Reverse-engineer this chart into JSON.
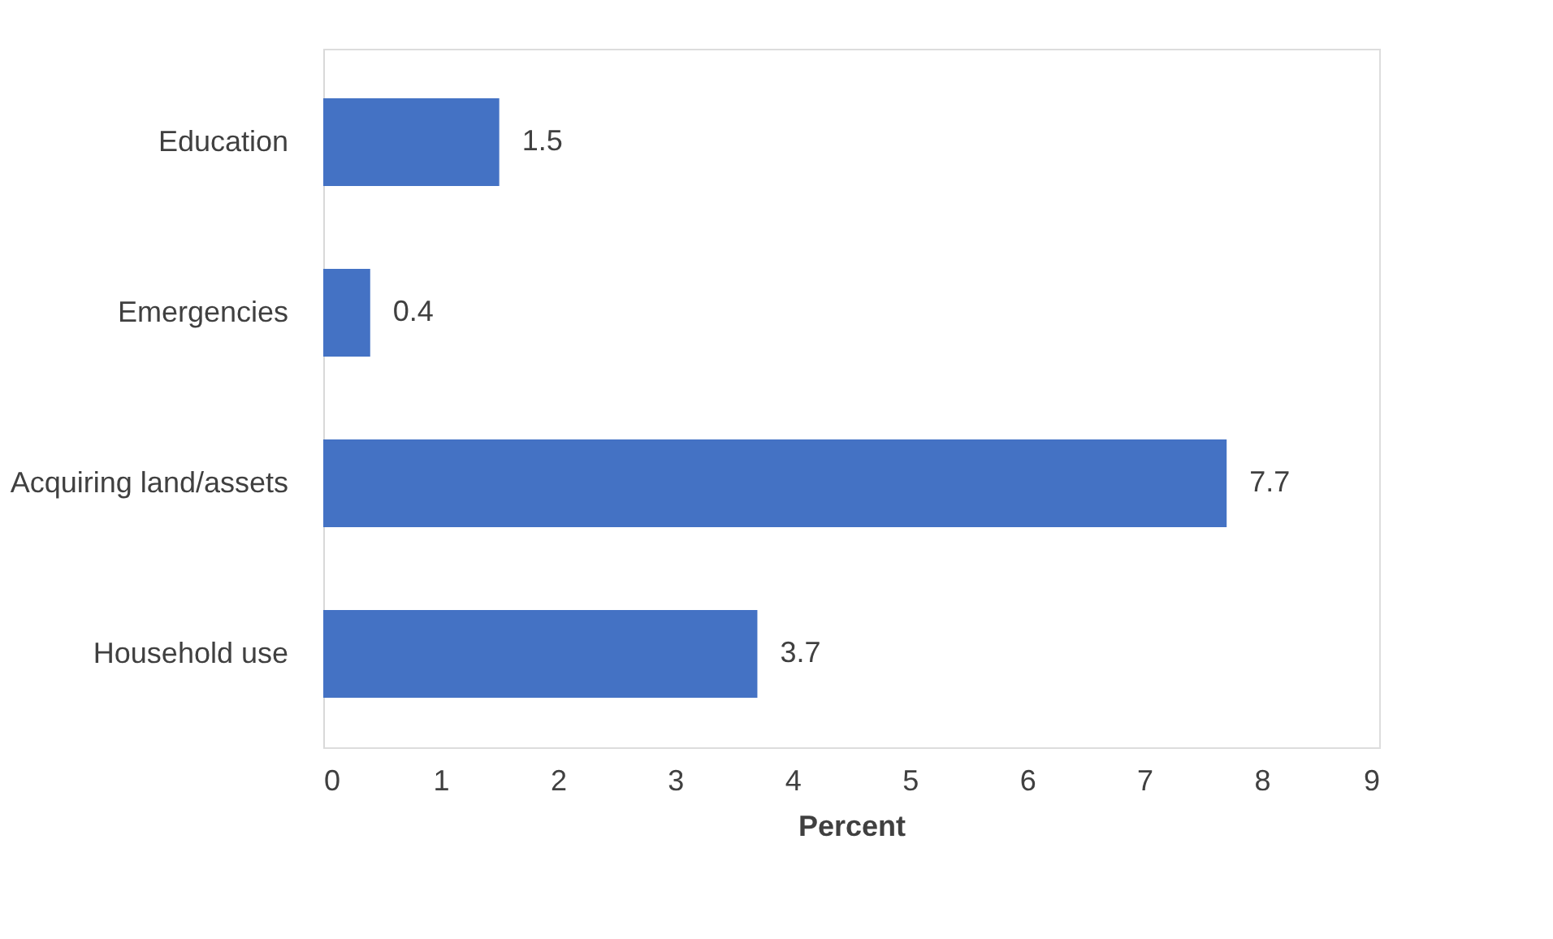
{
  "chart_data": {
    "type": "bar",
    "orientation": "horizontal",
    "xlabel": "Percent",
    "categories": [
      "Education",
      "Emergencies",
      "Acquiring land/assets",
      "Household use"
    ],
    "values": [
      1.5,
      0.4,
      7.7,
      3.7
    ],
    "color": "#4472c4",
    "xlim": [
      0,
      9
    ],
    "xticks": [
      0,
      1,
      2,
      3,
      4,
      5,
      6,
      7,
      8,
      9
    ],
    "grid": false,
    "data_labels": true
  }
}
